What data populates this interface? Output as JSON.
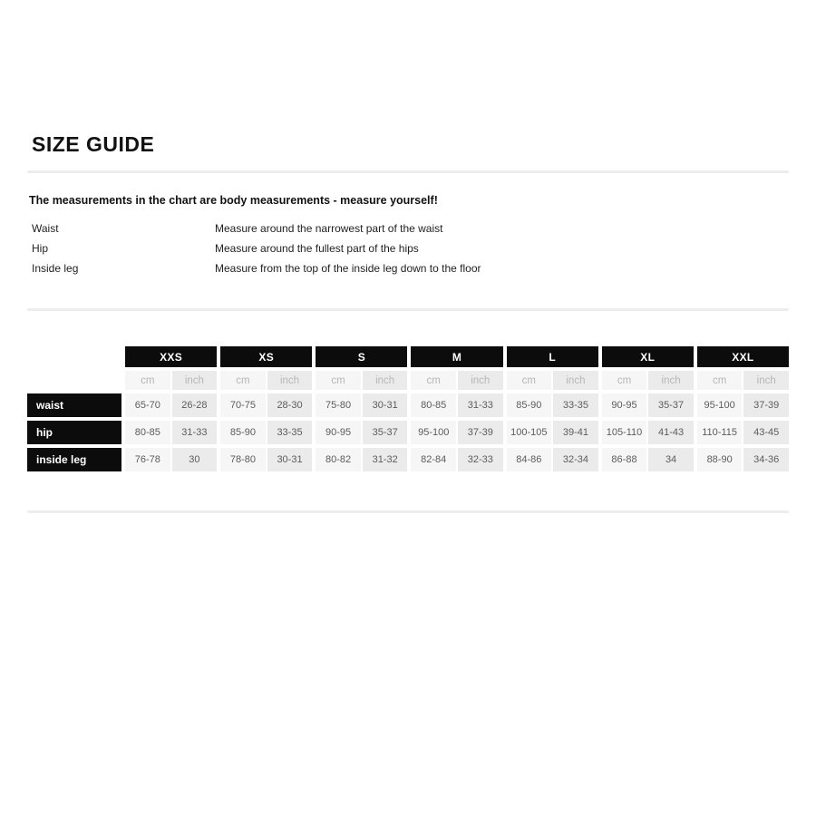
{
  "page": {
    "title": "SIZE GUIDE",
    "intro": "The measurements in the chart are body measurements - measure yourself!",
    "instructions": [
      {
        "label": "Waist",
        "description": "Measure around the narrowest part of the waist"
      },
      {
        "label": "Hip",
        "description": "Measure around the fullest part of the hips"
      },
      {
        "label": "Inside leg",
        "description": "Measure from the top of the inside leg down to the floor"
      }
    ]
  },
  "size_table": {
    "sizes": [
      "XXS",
      "XS",
      "S",
      "M",
      "L",
      "XL",
      "XXL"
    ],
    "unit_labels": [
      "cm",
      "inch"
    ],
    "rows": [
      {
        "label": "waist",
        "values": [
          [
            "65-70",
            "26-28"
          ],
          [
            "70-75",
            "28-30"
          ],
          [
            "75-80",
            "30-31"
          ],
          [
            "80-85",
            "31-33"
          ],
          [
            "85-90",
            "33-35"
          ],
          [
            "90-95",
            "35-37"
          ],
          [
            "95-100",
            "37-39"
          ]
        ]
      },
      {
        "label": "hip",
        "values": [
          [
            "80-85",
            "31-33"
          ],
          [
            "85-90",
            "33-35"
          ],
          [
            "90-95",
            "35-37"
          ],
          [
            "95-100",
            "37-39"
          ],
          [
            "100-105",
            "39-41"
          ],
          [
            "105-110",
            "41-43"
          ],
          [
            "110-115",
            "43-45"
          ]
        ]
      },
      {
        "label": "inside leg",
        "values": [
          [
            "76-78",
            "30"
          ],
          [
            "78-80",
            "30-31"
          ],
          [
            "80-82",
            "31-32"
          ],
          [
            "82-84",
            "32-33"
          ],
          [
            "84-86",
            "32-34"
          ],
          [
            "86-88",
            "34"
          ],
          [
            "88-90",
            "34-36"
          ]
        ]
      }
    ]
  },
  "colors": {
    "header_bg": "#0c0c0c",
    "header_text": "#ffffff",
    "cm_cell_bg": "#f6f6f6",
    "inch_cell_bg": "#ebebeb",
    "unit_text": "#b6b6b6",
    "value_text": "#5c5c5c",
    "divider": "#ededed"
  }
}
